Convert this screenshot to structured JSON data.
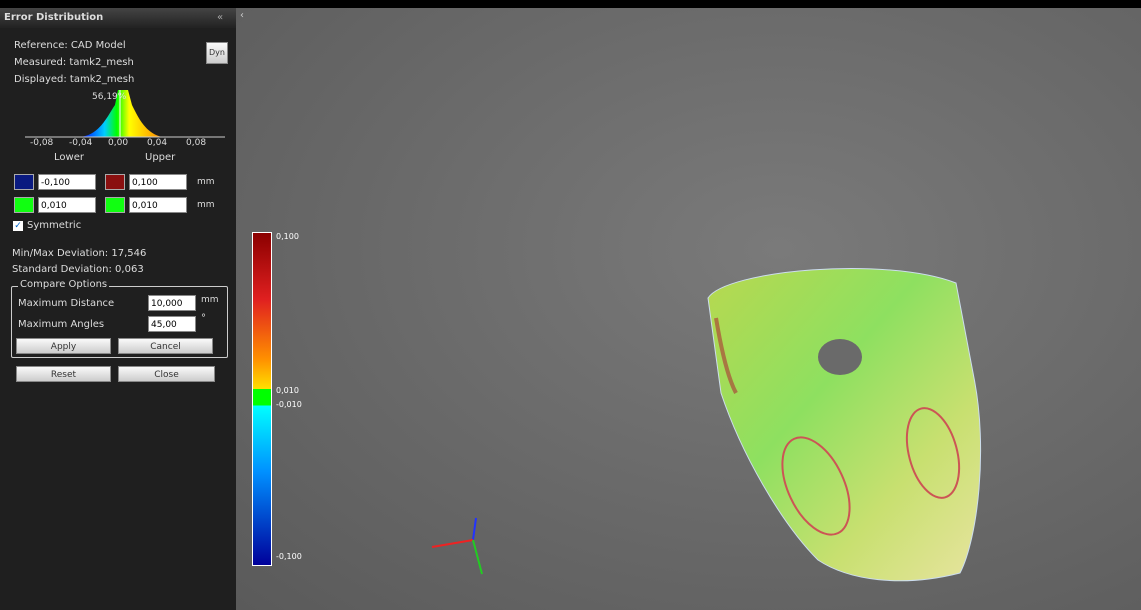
{
  "panel": {
    "title": "Error Distribution",
    "reference": "Reference: CAD Model",
    "measured": "Measured: tamk2_mesh",
    "displayed": "Displayed: tamk2_mesh",
    "dyn_button": "Dyn",
    "histogram": {
      "peak_label": "56,19%",
      "axis_labels": [
        "-0,08",
        "-0,04",
        "0,00",
        "0,04",
        "0,08"
      ]
    },
    "lower_label": "Lower",
    "upper_label": "Upper",
    "rows": [
      {
        "lower": "-0,100",
        "upper": "0,100",
        "unit": "mm"
      },
      {
        "lower": "0,010",
        "upper": "0,010",
        "unit": "mm"
      }
    ],
    "symmetric": "Symmetric",
    "min_max": "Min/Max Deviation: 17,546",
    "std_dev": "Standard Deviation: 0,063",
    "compare": {
      "title": "Compare Options",
      "max_distance_label": "Maximum Distance",
      "max_distance_value": "10,000",
      "max_distance_unit": "mm",
      "max_angles_label": "Maximum Angles",
      "max_angles_value": "45,00",
      "max_angles_unit": "°"
    },
    "buttons": {
      "apply": "Apply",
      "cancel": "Cancel",
      "reset": "Reset",
      "close": "Close"
    }
  },
  "viewport": {
    "color_bar_labels": [
      "0,100",
      "0,010",
      "-0,010",
      "-0,100"
    ]
  }
}
